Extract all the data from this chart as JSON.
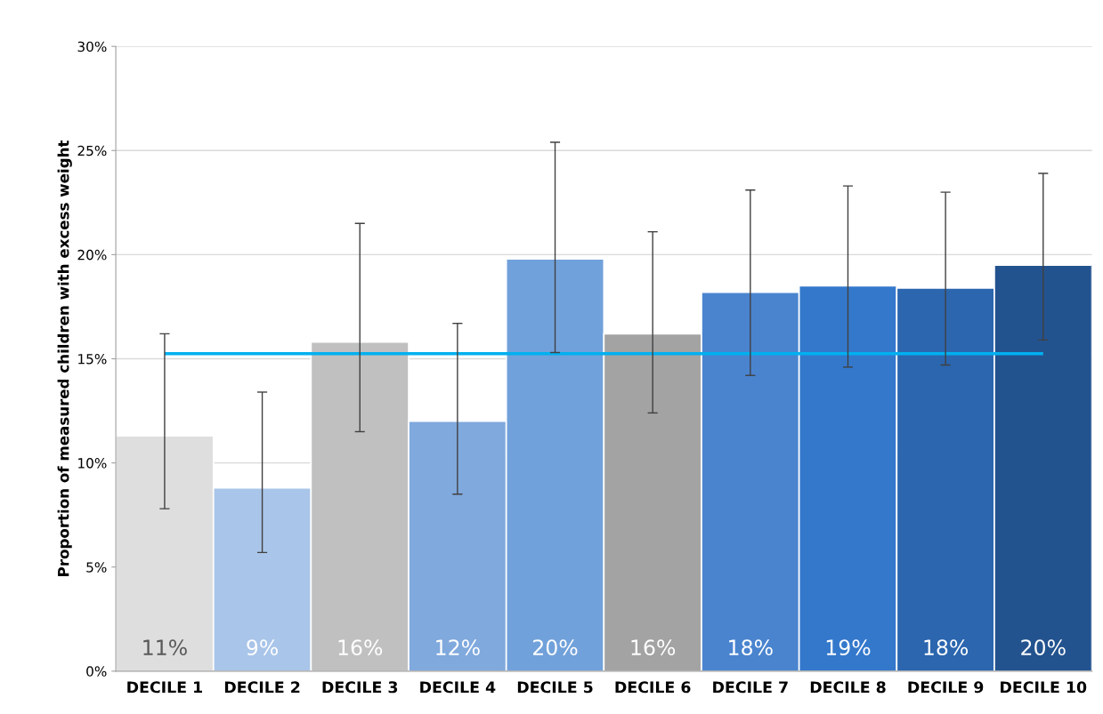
{
  "chart_data": {
    "type": "bar",
    "ylabel": "Proportion of measured children with excess weight",
    "categories": [
      "DECILE 1",
      "DECILE 2",
      "DECILE 3",
      "DECILE 4",
      "DECILE 5",
      "DECILE 6",
      "DECILE 7",
      "DECILE 8",
      "DECILE 9",
      "DECILE 10"
    ],
    "values": [
      11.3,
      8.8,
      15.8,
      12.0,
      19.8,
      16.2,
      18.2,
      18.5,
      18.4,
      19.5
    ],
    "colors": [
      "#dedede",
      "#a9c5e9",
      "#c0c0c0",
      "#80a9dd",
      "#71a1da",
      "#a3a3a3",
      "#4a84cf",
      "#3478cc",
      "#2b66af",
      "#23538f"
    ],
    "errors": [
      [
        7.8,
        16.2
      ],
      [
        5.7,
        13.4
      ],
      [
        11.5,
        21.5
      ],
      [
        8.5,
        16.7
      ],
      [
        15.3,
        25.4
      ],
      [
        12.4,
        21.1
      ],
      [
        14.2,
        23.1
      ],
      [
        14.6,
        23.3
      ],
      [
        14.7,
        23.0
      ],
      [
        15.9,
        23.9
      ]
    ],
    "value_labels": [
      "11%",
      "9%",
      "16%",
      "12%",
      "20%",
      "16%",
      "18%",
      "19%",
      "18%",
      "20%"
    ],
    "ref_lines": [
      {
        "axis": "y",
        "value": 15.25,
        "color": "#00b0f0"
      }
    ],
    "ylim": [
      0,
      30
    ],
    "yticks": [
      {
        "value": 0,
        "label": "0%"
      },
      {
        "value": 5,
        "label": "5%"
      },
      {
        "value": 10,
        "label": "10%"
      },
      {
        "value": 15,
        "label": "15%"
      },
      {
        "value": 20,
        "label": "20%"
      },
      {
        "value": 25,
        "label": "25%"
      },
      {
        "value": 30,
        "label": "30%"
      }
    ],
    "grid": "y"
  }
}
